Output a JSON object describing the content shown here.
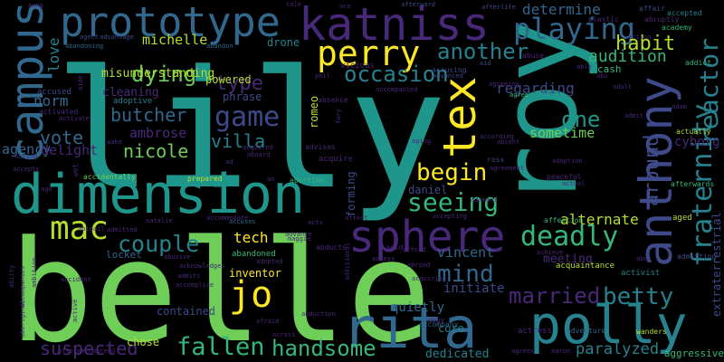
{
  "palette": {
    "teal": "#1f968b",
    "green": "#6ece58",
    "purple": "#482878",
    "blue": "#31688e",
    "yellow": "#fde725",
    "lightgreen": "#b5de2b",
    "mint": "#35b779",
    "navy": "#26828e",
    "indigo": "#3e4a89",
    "deep": "#440154"
  },
  "words": [
    {
      "text": "lily",
      "color": "#1f968b"
    },
    {
      "text": "belle",
      "color": "#6ece58"
    },
    {
      "text": "dimension",
      "color": "#1f968b"
    },
    {
      "text": "roy",
      "color": "#1f968b"
    },
    {
      "text": "katniss",
      "color": "#482878"
    },
    {
      "text": "prototype",
      "color": "#31688e"
    },
    {
      "text": "campus",
      "color": "#31688e"
    },
    {
      "text": "perry",
      "color": "#fde725"
    },
    {
      "text": "anthony",
      "color": "#3e4a89"
    },
    {
      "text": "tex",
      "color": "#fde725"
    },
    {
      "text": "sphere",
      "color": "#482878"
    },
    {
      "text": "rita",
      "color": "#31688e"
    },
    {
      "text": "polly",
      "color": "#26828e"
    },
    {
      "text": "mac",
      "color": "#b5de2b"
    },
    {
      "text": "jo",
      "color": "#fde725"
    },
    {
      "text": "playing",
      "color": "#31688e"
    },
    {
      "text": "game",
      "color": "#3e4a89"
    },
    {
      "text": "dying",
      "color": "#6ece58"
    },
    {
      "text": "fraternity",
      "color": "#26828e"
    },
    {
      "text": "reactor",
      "color": "#26828e"
    },
    {
      "text": "another",
      "color": "#26828e"
    },
    {
      "text": "occasion",
      "color": "#26828e"
    },
    {
      "text": "habit",
      "color": "#b5de2b"
    },
    {
      "text": "audition",
      "color": "#35b779"
    },
    {
      "text": "seeing",
      "color": "#35b779"
    },
    {
      "text": "begin",
      "color": "#fde725"
    },
    {
      "text": "deadly",
      "color": "#35b779"
    },
    {
      "text": "couple",
      "color": "#26828e"
    },
    {
      "text": "married",
      "color": "#482878"
    },
    {
      "text": "betty",
      "color": "#26828e"
    },
    {
      "text": "mind",
      "color": "#31688e"
    },
    {
      "text": "handsome",
      "color": "#35b779"
    },
    {
      "text": "fallen",
      "color": "#35b779"
    },
    {
      "text": "suspected",
      "color": "#482878"
    },
    {
      "text": "paralyzed",
      "color": "#26828e"
    },
    {
      "text": "vote",
      "color": "#31688e"
    },
    {
      "text": "butcher",
      "color": "#31688e"
    },
    {
      "text": "nicole",
      "color": "#6ece58"
    },
    {
      "text": "villa",
      "color": "#26828e"
    },
    {
      "text": "type",
      "color": "#482878"
    },
    {
      "text": "one",
      "color": "#1f968b"
    },
    {
      "text": "around",
      "color": "#3e4a89"
    },
    {
      "text": "alternate",
      "color": "#b5de2b"
    },
    {
      "text": "regarding",
      "color": "#3e4a89"
    },
    {
      "text": "sometime",
      "color": "#6ece58"
    },
    {
      "text": "determine",
      "color": "#31688e"
    },
    {
      "text": "michelle",
      "color": "#b5de2b"
    },
    {
      "text": "ambrose",
      "color": "#482878"
    },
    {
      "text": "norm",
      "color": "#31688e"
    },
    {
      "text": "love",
      "color": "#26828e"
    },
    {
      "text": "agency",
      "color": "#31688e"
    },
    {
      "text": "delight",
      "color": "#482878"
    },
    {
      "text": "vincent",
      "color": "#31688e"
    },
    {
      "text": "initiate",
      "color": "#3e4a89"
    },
    {
      "text": "quietly",
      "color": "#31688e"
    },
    {
      "text": "cyborg",
      "color": "#482878"
    },
    {
      "text": "extraterrestrial",
      "color": "#3e4a89"
    },
    {
      "text": "misunderstanding",
      "color": "#b5de2b"
    },
    {
      "text": "powered",
      "color": "#b5de2b"
    },
    {
      "text": "cleaning",
      "color": "#482878"
    },
    {
      "text": "tech",
      "color": "#fde725"
    },
    {
      "text": "inventor",
      "color": "#fde725"
    },
    {
      "text": "chose",
      "color": "#b5de2b"
    },
    {
      "text": "contained",
      "color": "#3e4a89"
    },
    {
      "text": "dedicated",
      "color": "#26828e"
    },
    {
      "text": "core",
      "color": "#26828e"
    },
    {
      "text": "meeting",
      "color": "#482878"
    },
    {
      "text": "forming",
      "color": "#3e4a89"
    },
    {
      "text": "drone",
      "color": "#26828e"
    },
    {
      "text": "romeo",
      "color": "#b5de2b"
    },
    {
      "text": "phrase",
      "color": "#3e4a89"
    },
    {
      "text": "adoptive",
      "color": "#26828e"
    },
    {
      "text": "abandoned",
      "color": "#35b779"
    },
    {
      "text": "locket",
      "color": "#31688e"
    },
    {
      "text": "daniel",
      "color": "#3e4a89"
    },
    {
      "text": "cash",
      "color": "#35b779"
    },
    {
      "text": "aged",
      "color": "#b5de2b"
    },
    {
      "text": "wanders",
      "color": "#b5de2b"
    },
    {
      "text": "aggressive",
      "color": "#35b779"
    },
    {
      "text": "actress",
      "color": "#482878"
    },
    {
      "text": "abby",
      "color": "#482878"
    },
    {
      "text": "acid",
      "color": "#482878"
    },
    {
      "text": "accompany",
      "color": "#31688e"
    },
    {
      "text": "affection",
      "color": "#35b779"
    },
    {
      "text": "acquaintance",
      "color": "#b5de2b"
    },
    {
      "text": "adventure",
      "color": "#31688e"
    },
    {
      "text": "activist",
      "color": "#26828e"
    },
    {
      "text": "admitting",
      "color": "#3e4a89"
    },
    {
      "text": "accused",
      "color": "#3e4a89"
    },
    {
      "text": "activated",
      "color": "#482878"
    },
    {
      "text": "accidentally",
      "color": "#6ece58"
    },
    {
      "text": "prepared",
      "color": "#b5de2b"
    },
    {
      "text": "abortion",
      "color": "#35b779"
    },
    {
      "text": "abducts",
      "color": "#482878"
    },
    {
      "text": "afterwards",
      "color": "#35b779"
    },
    {
      "text": "academy",
      "color": "#35b779"
    },
    {
      "text": "accepted",
      "color": "#26828e"
    },
    {
      "text": "actually",
      "color": "#b5de2b"
    },
    {
      "text": "affair",
      "color": "#3e4a89"
    },
    {
      "text": "addict",
      "color": "#35b779"
    },
    {
      "text": "plastic",
      "color": "#482878"
    },
    {
      "text": "abruptly",
      "color": "#482878"
    },
    {
      "text": "vicious",
      "color": "#482878"
    },
    {
      "text": "acquire",
      "color": "#482878"
    },
    {
      "text": "advises",
      "color": "#482878"
    },
    {
      "text": "absence",
      "color": "#482878"
    },
    {
      "text": "abandon",
      "color": "#31688e"
    },
    {
      "text": "abandoning",
      "color": "#31688e"
    },
    {
      "text": "agent",
      "color": "#3e4a89"
    },
    {
      "text": "advantage",
      "color": "#3e4a89"
    },
    {
      "text": "accusing",
      "color": "#3e4a89"
    },
    {
      "text": "advanced",
      "color": "#3e4a89"
    },
    {
      "text": "afterlife",
      "color": "#3e4a89"
    },
    {
      "text": "aid",
      "color": "#3e4a89"
    },
    {
      "text": "afterward",
      "color": "#3e4a89"
    },
    {
      "text": "accompanied",
      "color": "#482878"
    },
    {
      "text": "abuse",
      "color": "#482878"
    },
    {
      "text": "agree",
      "color": "#35b779"
    },
    {
      "text": "ross",
      "color": "#3e4a89"
    },
    {
      "text": "according",
      "color": "#482878"
    },
    {
      "text": "agreement",
      "color": "#482878"
    },
    {
      "text": "peaceful",
      "color": "#482878"
    },
    {
      "text": "actual",
      "color": "#482878"
    },
    {
      "text": "accepting",
      "color": "#482878"
    },
    {
      "text": "affect",
      "color": "#482878"
    },
    {
      "text": "acquired",
      "color": "#482878"
    },
    {
      "text": "aboard",
      "color": "#482878"
    },
    {
      "text": "acts",
      "color": "#482878"
    },
    {
      "text": "accommodate",
      "color": "#482878"
    },
    {
      "text": "advance",
      "color": "#482878"
    },
    {
      "text": "maggie",
      "color": "#482878"
    },
    {
      "text": "adopted",
      "color": "#482878"
    },
    {
      "text": "accomplice",
      "color": "#482878"
    },
    {
      "text": "acknowledges",
      "color": "#482878"
    },
    {
      "text": "admits",
      "color": "#482878"
    },
    {
      "text": "natalie",
      "color": "#482878"
    },
    {
      "text": "accuses",
      "color": "#31688e"
    },
    {
      "text": "admitted",
      "color": "#482878"
    },
    {
      "text": "abusive",
      "color": "#482878"
    },
    {
      "text": "abigail",
      "color": "#482878"
    },
    {
      "text": "access",
      "color": "#482878"
    },
    {
      "text": "afford",
      "color": "#482878"
    },
    {
      "text": "afraid",
      "color": "#482878"
    },
    {
      "text": "abduction",
      "color": "#482878"
    },
    {
      "text": "additional",
      "color": "#482878"
    },
    {
      "text": "across",
      "color": "#482878"
    },
    {
      "text": "ace",
      "color": "#482878"
    },
    {
      "text": "tale",
      "color": "#482878"
    },
    {
      "text": "abu",
      "color": "#482878"
    },
    {
      "text": "able",
      "color": "#482878"
    },
    {
      "text": "abe",
      "color": "#482878"
    },
    {
      "text": "accepts",
      "color": "#482878"
    },
    {
      "text": "adam",
      "color": "#482878"
    },
    {
      "text": "aboriginal",
      "color": "#482878"
    },
    {
      "text": "aang",
      "color": "#482878"
    },
    {
      "text": "ad",
      "color": "#482878"
    },
    {
      "text": "aaron",
      "color": "#482878"
    },
    {
      "text": "agrees",
      "color": "#482878"
    },
    {
      "text": "aftermathagreed",
      "color": "#482878"
    },
    {
      "text": "wet",
      "color": "#482878"
    },
    {
      "text": "wake",
      "color": "#482878"
    },
    {
      "text": "achieve",
      "color": "#482878"
    },
    {
      "text": "accident",
      "color": "#482878"
    },
    {
      "text": "acting",
      "color": "#482878"
    },
    {
      "text": "age",
      "color": "#482878"
    },
    {
      "text": "aide",
      "color": "#482878"
    },
    {
      "text": "activate",
      "color": "#482878"
    },
    {
      "text": "action",
      "color": "#482878"
    },
    {
      "text": "adult",
      "color": "#482878"
    },
    {
      "text": "abilty",
      "color": "#482878"
    },
    {
      "text": "ambition",
      "color": "#482878"
    },
    {
      "text": "accompanies",
      "color": "#482878"
    },
    {
      "text": "active",
      "color": "#482878"
    },
    {
      "text": "aging",
      "color": "#482878"
    },
    {
      "text": "absent",
      "color": "#482878"
    },
    {
      "text": "fury",
      "color": "#482878"
    },
    {
      "text": "phil",
      "color": "#482878"
    },
    {
      "text": "abroad",
      "color": "#482878"
    },
    {
      "text": "an",
      "color": "#482878"
    },
    {
      "text": "acquiring",
      "color": "#482878"
    },
    {
      "text": "agreeing",
      "color": "#482878"
    },
    {
      "text": "admit",
      "color": "#482878"
    },
    {
      "text": "adoption",
      "color": "#482878"
    },
    {
      "text": "adamant",
      "color": "#482878"
    }
  ]
}
